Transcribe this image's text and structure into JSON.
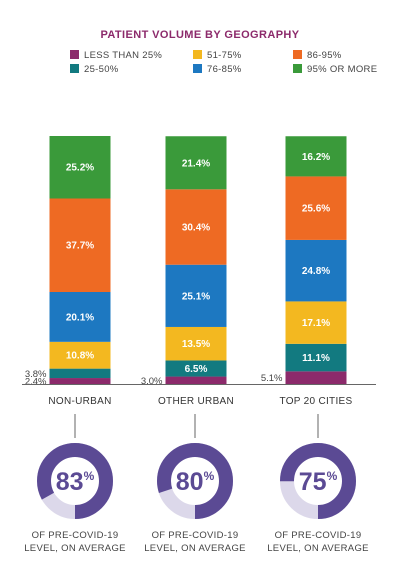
{
  "chart_data": {
    "type": "bar",
    "stacked": true,
    "title": "PATIENT VOLUME BY GEOGRAPHY",
    "categories": [
      "NON-URBAN",
      "OTHER URBAN",
      "TOP 20 CITIES"
    ],
    "series": [
      {
        "name": "LESS THAN 25%",
        "color": "#8c2a6b",
        "values": [
          2.4,
          3.0,
          5.1
        ]
      },
      {
        "name": "25-50%",
        "color": "#127a80",
        "values": [
          3.8,
          6.5,
          11.1
        ]
      },
      {
        "name": "51-75%",
        "color": "#f3b820",
        "values": [
          10.8,
          13.5,
          17.1
        ]
      },
      {
        "name": "76-85%",
        "color": "#1d78c1",
        "values": [
          20.1,
          25.1,
          24.8
        ]
      },
      {
        "name": "86-95%",
        "color": "#ee6a23",
        "values": [
          37.7,
          30.4,
          25.6
        ]
      },
      {
        "name": "95% OR MORE",
        "color": "#3a9a3a",
        "values": [
          25.2,
          21.4,
          16.2
        ]
      }
    ],
    "value_labels": [
      [
        "2.4%",
        "3.8%",
        "10.8%",
        "20.1%",
        "37.7%",
        "25.2%"
      ],
      [
        "3.0%",
        "6.5%",
        "13.5%",
        "25.1%",
        "30.4%",
        "21.4%"
      ],
      [
        "5.1%",
        "11.1%",
        "17.1%",
        "24.8%",
        "25.6%",
        "16.2%"
      ]
    ],
    "legend_position": "top",
    "ylim": [
      0,
      100
    ],
    "grid": false
  },
  "donuts": [
    {
      "value": 83,
      "number_label": "83",
      "percent_sign": "%",
      "caption_line1": "OF PRE-COVID-19",
      "caption_line2": "LEVEL, ON AVERAGE"
    },
    {
      "value": 80,
      "number_label": "80",
      "percent_sign": "%",
      "caption_line1": "OF PRE-COVID-19",
      "caption_line2": "LEVEL, ON AVERAGE"
    },
    {
      "value": 75,
      "number_label": "75",
      "percent_sign": "%",
      "caption_line1": "OF PRE-COVID-19",
      "caption_line2": "LEVEL, ON AVERAGE"
    }
  ],
  "colors": {
    "title": "#8c2a6b",
    "donut_fill": "#5b4a94",
    "donut_track": "#dcd8ea",
    "axis": "#666666"
  }
}
